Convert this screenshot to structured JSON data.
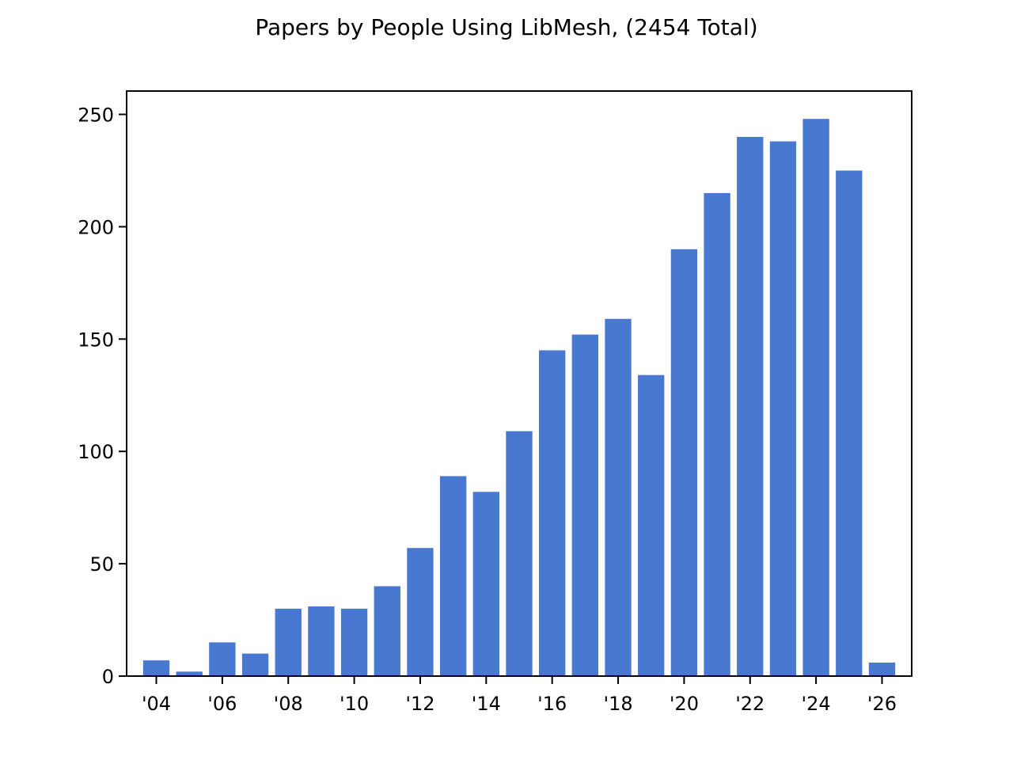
{
  "chart_data": {
    "type": "bar",
    "title": "Papers by People Using LibMesh, (2454 Total)",
    "xlabel": "",
    "ylabel": "",
    "categories": [
      "2004",
      "2005",
      "2006",
      "2007",
      "2008",
      "2009",
      "2010",
      "2011",
      "2012",
      "2013",
      "2014",
      "2015",
      "2016",
      "2017",
      "2018",
      "2019",
      "2020",
      "2021",
      "2022",
      "2023",
      "2024",
      "2025",
      "2026"
    ],
    "values": [
      7,
      2,
      15,
      10,
      30,
      31,
      30,
      40,
      57,
      89,
      82,
      109,
      145,
      152,
      159,
      134,
      190,
      215,
      240,
      238,
      248,
      225,
      6
    ],
    "xlim": [
      2003.1,
      2026.9
    ],
    "ylim": [
      0,
      260.4
    ],
    "x_ticks": [
      2004,
      2006,
      2008,
      2010,
      2012,
      2014,
      2016,
      2018,
      2020,
      2022,
      2024,
      2026
    ],
    "x_tick_labels": [
      "'04",
      "'06",
      "'08",
      "'10",
      "'12",
      "'14",
      "'16",
      "'18",
      "'20",
      "'22",
      "'24",
      "'26"
    ],
    "y_ticks": [
      0,
      50,
      100,
      150,
      200,
      250
    ],
    "y_tick_labels": [
      "0",
      "50",
      "100",
      "150",
      "200",
      "250"
    ],
    "bar_color": "#4878cf",
    "grid": false,
    "legend": "none"
  }
}
